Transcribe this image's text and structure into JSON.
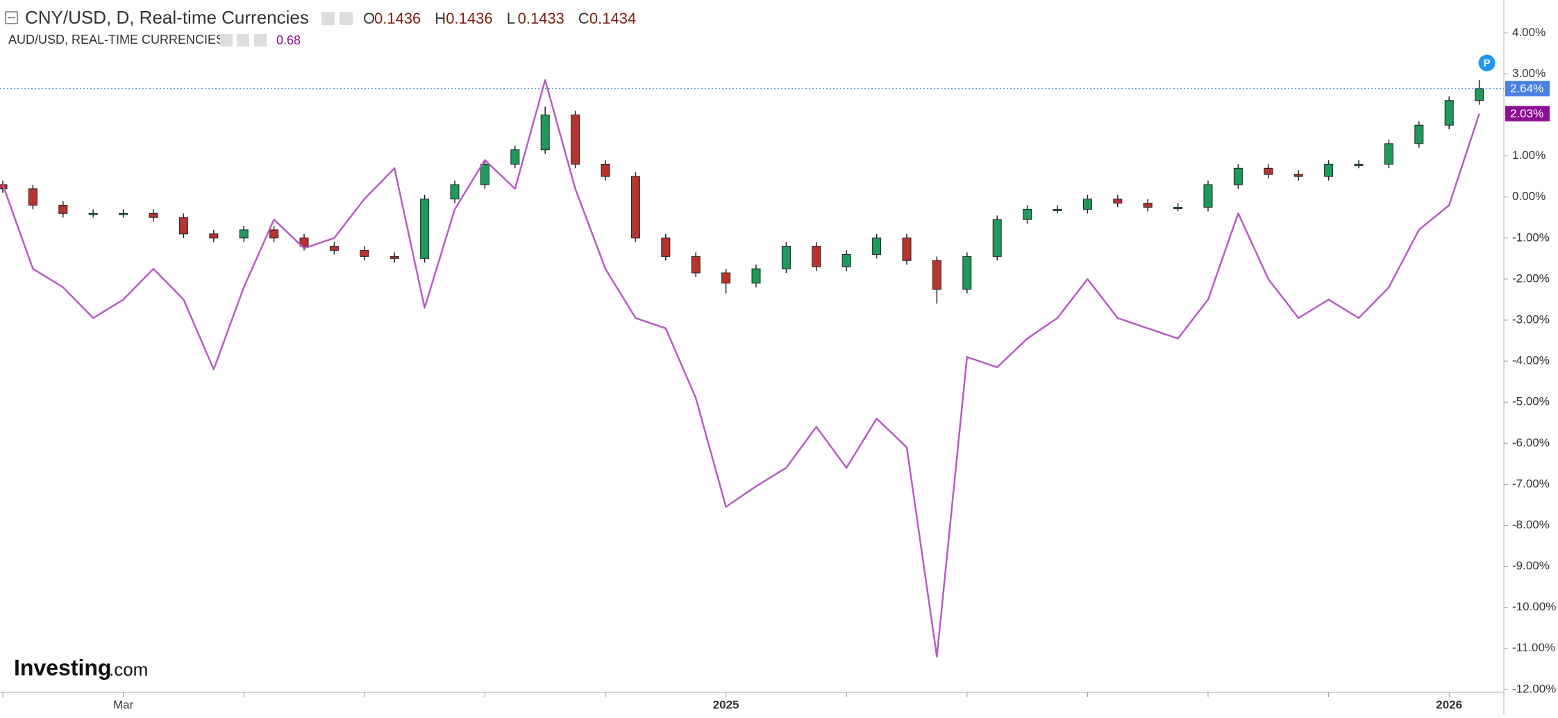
{
  "chart_data": {
    "type": "candlestick",
    "categories": [
      null,
      null,
      null,
      null,
      "Mar",
      null,
      null,
      null,
      null,
      null,
      null,
      null,
      null,
      null,
      null,
      null,
      null,
      null,
      null,
      null,
      null,
      null,
      null,
      null,
      "2025",
      null,
      null,
      null,
      null,
      null,
      null,
      null,
      null,
      null,
      null,
      null,
      null,
      null,
      null,
      null,
      null,
      null,
      null,
      null,
      null,
      null,
      null,
      null,
      "2026",
      null
    ],
    "ylim": [
      -12.07,
      4.8
    ],
    "yticks": [
      {
        "value": 4,
        "label": "4.00%"
      },
      {
        "value": 3,
        "label": "3.00%"
      },
      {
        "value": 2,
        "label": "2.00%"
      },
      {
        "value": 1,
        "label": "1.00%"
      },
      {
        "value": 0,
        "label": "0.00%"
      },
      {
        "value": -1,
        "label": "-1.00%"
      },
      {
        "value": -2,
        "label": "-2.00%"
      },
      {
        "value": -3,
        "label": "-3.00%"
      },
      {
        "value": -4,
        "label": "-4.00%"
      },
      {
        "value": -5,
        "label": "-5.00%"
      },
      {
        "value": -6,
        "label": "-6.00%"
      },
      {
        "value": -7,
        "label": "-7.00%"
      },
      {
        "value": -8,
        "label": "-8.00%"
      },
      {
        "value": -9,
        "label": "-9.00%"
      },
      {
        "value": -10,
        "label": "-10.00%"
      },
      {
        "value": -11,
        "label": "-11.00%"
      },
      {
        "value": -12,
        "label": "-12.00%"
      }
    ],
    "series": [
      {
        "name": "CNY/USD, D, Real-time Currencies",
        "up_color": "#1f9a5c",
        "down_color": "#b8332e",
        "label_color": "#4a7fe0",
        "quote": [
          {
            "label": "O",
            "value": 0.1436
          },
          {
            "label": "H",
            "value": 0.1436
          },
          {
            "label": "L",
            "value": 0.1433
          },
          {
            "label": "C",
            "value": 0.1434
          }
        ],
        "open": [
          0.3,
          0.2,
          -0.2,
          -0.4,
          -0.4,
          -0.4,
          -0.5,
          -0.9,
          -1.0,
          -0.8,
          -1.0,
          -1.2,
          -1.3,
          -1.45,
          -1.5,
          -0.05,
          0.3,
          0.8,
          1.15,
          2.0,
          0.8,
          0.5,
          -1.0,
          -1.45,
          -1.85,
          -2.1,
          -1.75,
          -1.2,
          -1.7,
          -1.4,
          -1.0,
          -1.55,
          -2.25,
          -1.45,
          -0.55,
          -0.3,
          -0.3,
          -0.05,
          -0.15,
          -0.25,
          -0.25,
          0.3,
          0.7,
          0.55,
          0.5,
          0.8,
          0.8,
          1.3,
          1.75,
          2.35
        ],
        "high": [
          0.4,
          0.3,
          -0.1,
          -0.3,
          -0.3,
          -0.3,
          -0.4,
          -0.8,
          -0.7,
          -0.7,
          -0.9,
          -1.1,
          -1.2,
          -1.35,
          0.05,
          0.4,
          0.9,
          1.25,
          2.2,
          2.1,
          0.9,
          0.6,
          -0.9,
          -1.35,
          -1.75,
          -1.65,
          -1.1,
          -1.1,
          -1.3,
          -0.9,
          -0.9,
          -1.45,
          -1.35,
          -0.45,
          -0.2,
          -0.2,
          0.05,
          0.05,
          -0.05,
          -0.15,
          0.4,
          0.8,
          0.8,
          0.65,
          0.9,
          0.9,
          1.4,
          1.85,
          2.45,
          2.85
        ],
        "low": [
          0.1,
          -0.3,
          -0.5,
          -0.5,
          -0.5,
          -0.6,
          -1.0,
          -1.1,
          -1.1,
          -1.1,
          -1.3,
          -1.4,
          -1.55,
          -1.6,
          -1.6,
          -0.15,
          0.2,
          0.7,
          1.05,
          0.7,
          0.4,
          -1.1,
          -1.55,
          -1.95,
          -2.35,
          -2.2,
          -1.85,
          -1.8,
          -1.8,
          -1.5,
          -1.65,
          -2.6,
          -2.35,
          -1.55,
          -0.65,
          -0.4,
          -0.4,
          -0.25,
          -0.35,
          -0.35,
          -0.35,
          0.2,
          0.45,
          0.4,
          0.4,
          0.7,
          0.7,
          1.2,
          1.65,
          2.25
        ],
        "close": [
          0.2,
          -0.2,
          -0.4,
          -0.4,
          -0.4,
          -0.5,
          -0.9,
          -1.0,
          -0.8,
          -1.0,
          -1.2,
          -1.3,
          -1.45,
          -1.5,
          -0.05,
          0.3,
          0.8,
          1.15,
          2.0,
          0.8,
          0.5,
          -1.0,
          -1.45,
          -1.85,
          -2.1,
          -1.75,
          -1.2,
          -1.7,
          -1.4,
          -1.0,
          -1.55,
          -2.25,
          -1.45,
          -0.55,
          -0.3,
          -0.3,
          -0.05,
          -0.15,
          -0.25,
          -0.25,
          0.3,
          0.7,
          0.55,
          0.5,
          0.8,
          0.8,
          1.3,
          1.75,
          2.35,
          2.64
        ],
        "last_label": "2.64%"
      },
      {
        "name": "AUD/USD, REAL-TIME CURRENCIES",
        "color": "#b55dc2",
        "label_color": "#8e0f93",
        "quote": 0.68,
        "values": [
          0.3,
          -1.75,
          -2.2,
          -2.95,
          -2.5,
          -1.75,
          -2.5,
          -4.2,
          -2.2,
          -0.55,
          -1.25,
          -1.0,
          -0.05,
          0.7,
          -2.7,
          -0.3,
          0.9,
          0.2,
          2.85,
          0.2,
          -1.75,
          -2.95,
          -3.2,
          -4.9,
          -7.55,
          -7.05,
          -6.6,
          -5.6,
          -6.6,
          -5.4,
          -6.1,
          -11.2,
          -3.9,
          -4.15,
          -3.45,
          -2.95,
          -2.0,
          -2.95,
          -3.2,
          -3.45,
          -2.5,
          -0.4,
          -2.0,
          -2.95,
          -2.5,
          -2.95,
          -2.2,
          -0.8,
          -0.2,
          2.03
        ],
        "last_label": "2.03%"
      }
    ],
    "marker": "P",
    "watermark": {
      "brand": "Investing",
      "suffix": ".com"
    }
  }
}
